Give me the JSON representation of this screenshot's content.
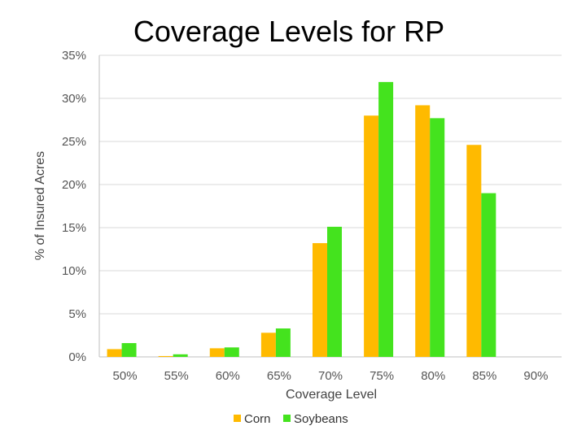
{
  "slide": {
    "title": "Coverage Levels for RP"
  },
  "colors": {
    "corn": "#FFBA00",
    "soybeans": "#44E31E",
    "grid": "#D9D9D9",
    "axis": "#BFBFBF"
  },
  "chart_data": {
    "type": "bar",
    "title": "Coverage Levels for RP",
    "xlabel": "Coverage Level",
    "ylabel": "% of Insured Acres",
    "categories": [
      "50%",
      "55%",
      "60%",
      "65%",
      "70%",
      "75%",
      "80%",
      "85%",
      "90%"
    ],
    "yticks": [
      "0%",
      "5%",
      "10%",
      "15%",
      "20%",
      "25%",
      "30%",
      "35%"
    ],
    "ylim": [
      0,
      35
    ],
    "grid": true,
    "legend_position": "bottom",
    "series": [
      {
        "name": "Corn",
        "color": "#FFBA00",
        "values": [
          0.9,
          0.1,
          1.0,
          2.8,
          13.2,
          28.0,
          29.2,
          24.6,
          0.0
        ]
      },
      {
        "name": "Soybeans",
        "color": "#44E31E",
        "values": [
          1.6,
          0.3,
          1.1,
          3.3,
          15.1,
          31.9,
          27.7,
          19.0,
          0.0
        ]
      }
    ]
  }
}
